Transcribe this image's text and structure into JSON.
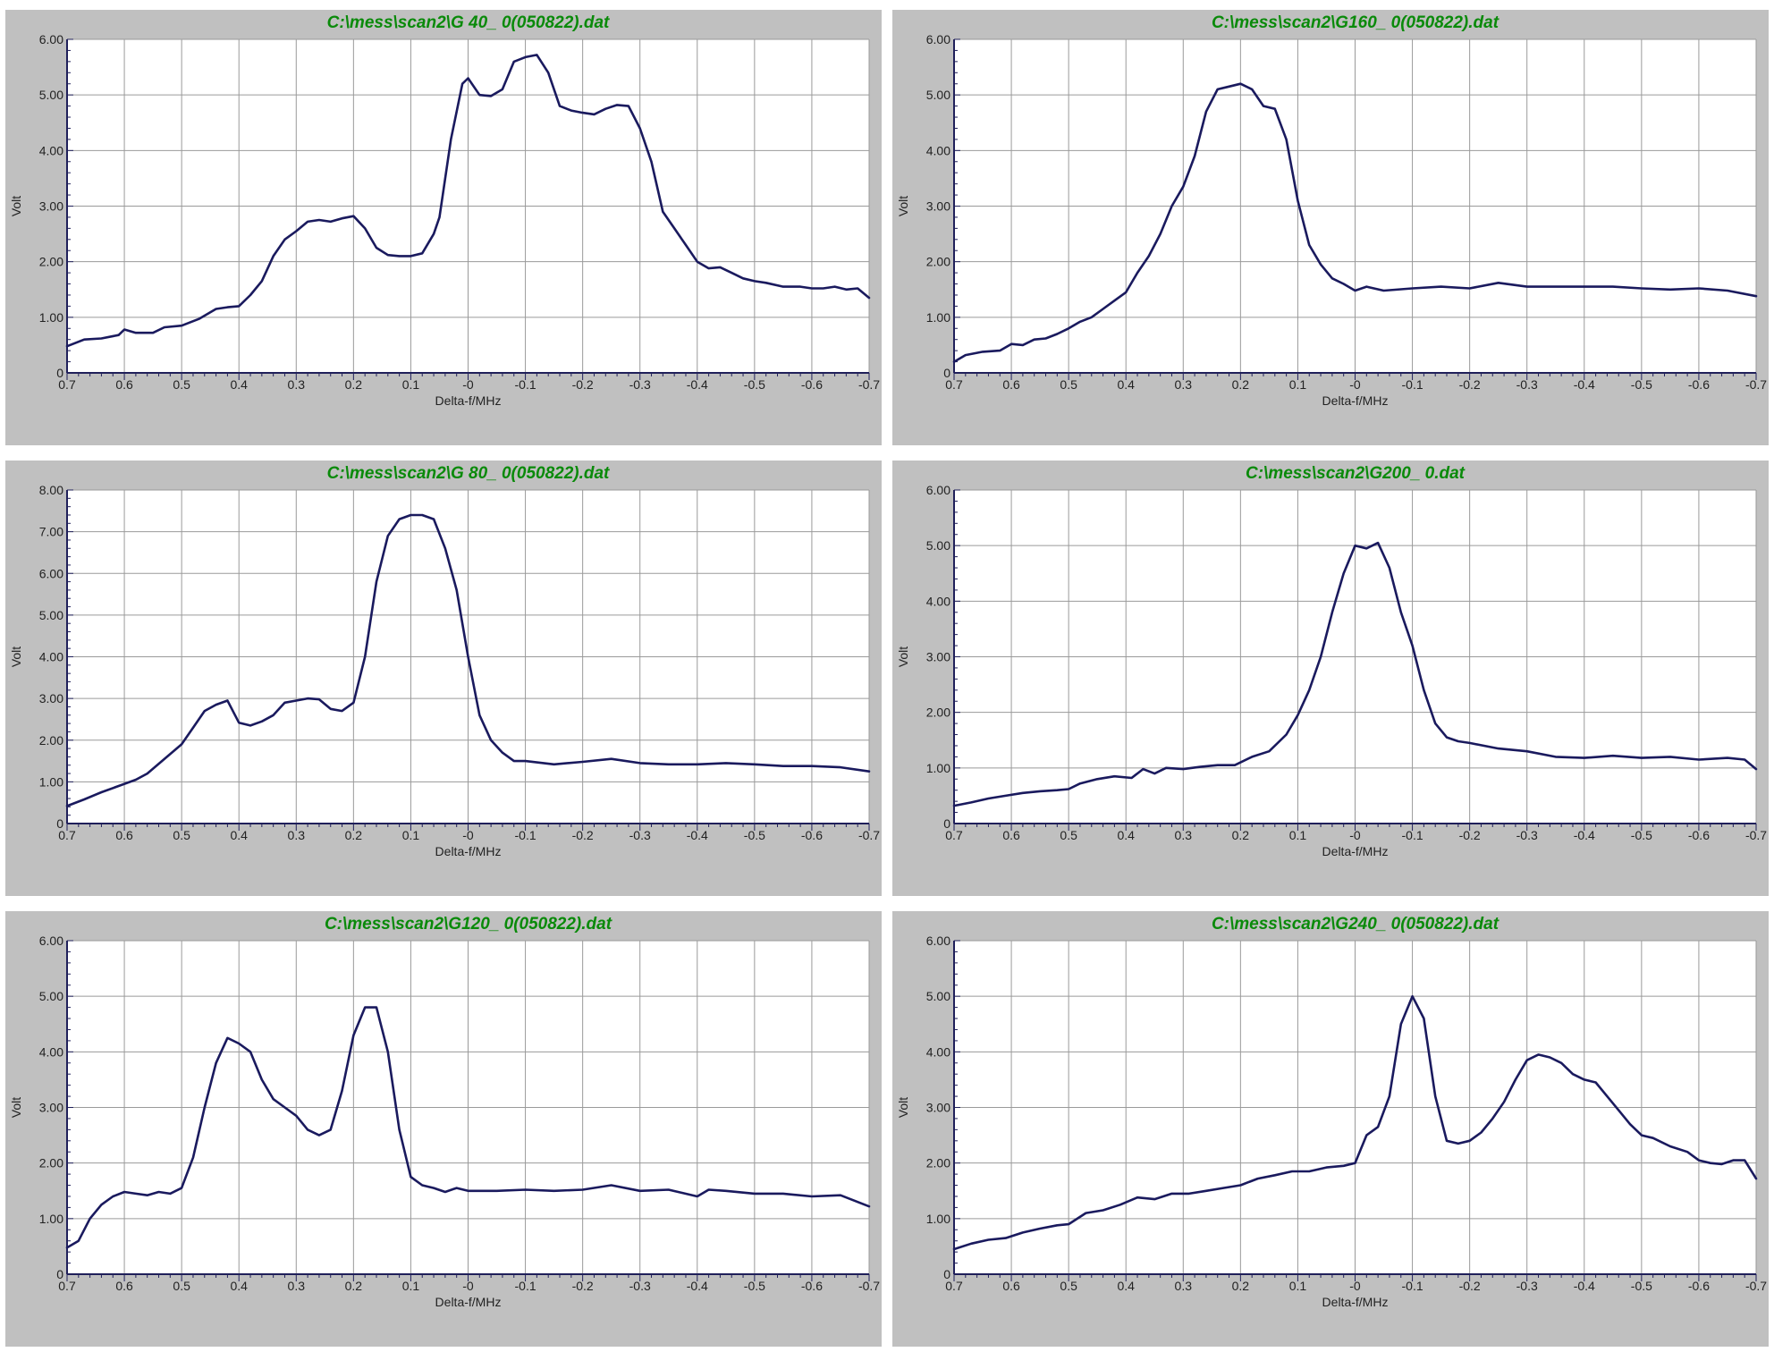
{
  "colors": {
    "panel_background": "#c0c0c0",
    "plot_background": "#ffffff",
    "grid": "#9a9a9a",
    "axis": "#20205a",
    "line": "#1a1a5e",
    "title": "#0a8a0a"
  },
  "chart_data": [
    {
      "type": "line",
      "title": "C:\\mess\\scan2\\G 40_  0(050822).dat",
      "xlabel": "Delta-f/MHz",
      "ylabel": "Volt",
      "xlim": [
        0.7,
        -0.7
      ],
      "ylim": [
        0,
        6
      ],
      "xticks": [
        "0.7",
        "0.6",
        "0.5",
        "0.4",
        "0.3",
        "0.2",
        "0.1",
        "-0",
        "-0.1",
        "-0.2",
        "-0.3",
        "-0.4",
        "-0.5",
        "-0.6",
        "-0.7"
      ],
      "yticks": [
        "0",
        "1.00",
        "2.00",
        "3.00",
        "4.00",
        "5.00",
        "6.00"
      ],
      "grid": true,
      "series": [
        {
          "x": [
            0.7,
            0.67,
            0.64,
            0.61,
            0.6,
            0.58,
            0.55,
            0.53,
            0.5,
            0.47,
            0.44,
            0.42,
            0.4,
            0.38,
            0.36,
            0.34,
            0.32,
            0.3,
            0.28,
            0.26,
            0.24,
            0.22,
            0.2,
            0.18,
            0.16,
            0.14,
            0.12,
            0.1,
            0.08,
            0.06,
            0.05,
            0.03,
            0.01,
            0.0,
            -0.02,
            -0.04,
            -0.06,
            -0.08,
            -0.1,
            -0.12,
            -0.14,
            -0.16,
            -0.18,
            -0.2,
            -0.22,
            -0.24,
            -0.26,
            -0.28,
            -0.3,
            -0.32,
            -0.34,
            -0.36,
            -0.38,
            -0.4,
            -0.42,
            -0.44,
            -0.46,
            -0.48,
            -0.5,
            -0.52,
            -0.55,
            -0.58,
            -0.6,
            -0.62,
            -0.64,
            -0.66,
            -0.68,
            -0.7
          ],
          "y": [
            0.48,
            0.6,
            0.62,
            0.68,
            0.78,
            0.72,
            0.72,
            0.82,
            0.85,
            0.97,
            1.15,
            1.18,
            1.2,
            1.4,
            1.65,
            2.1,
            2.4,
            2.55,
            2.72,
            2.75,
            2.72,
            2.78,
            2.82,
            2.6,
            2.25,
            2.12,
            2.1,
            2.1,
            2.15,
            2.5,
            2.8,
            4.2,
            5.2,
            5.3,
            5.0,
            4.98,
            5.1,
            5.6,
            5.68,
            5.72,
            5.4,
            4.8,
            4.72,
            4.68,
            4.65,
            4.75,
            4.82,
            4.8,
            4.4,
            3.8,
            2.9,
            2.6,
            2.3,
            2.0,
            1.88,
            1.9,
            1.8,
            1.7,
            1.65,
            1.62,
            1.55,
            1.55,
            1.52,
            1.52,
            1.55,
            1.5,
            1.52,
            1.35
          ]
        }
      ]
    },
    {
      "type": "line",
      "title": "C:\\mess\\scan2\\G160_  0(050822).dat",
      "xlabel": "Delta-f/MHz",
      "ylabel": "Volt",
      "xlim": [
        0.7,
        -0.7
      ],
      "ylim": [
        0,
        6
      ],
      "xticks": [
        "0.7",
        "0.6",
        "0.5",
        "0.4",
        "0.3",
        "0.2",
        "0.1",
        "-0",
        "-0.1",
        "-0.2",
        "-0.3",
        "-0.4",
        "-0.5",
        "-0.6",
        "-0.7"
      ],
      "yticks": [
        "0",
        "1.00",
        "2.00",
        "3.00",
        "4.00",
        "5.00",
        "6.00"
      ],
      "grid": true,
      "series": [
        {
          "x": [
            0.7,
            0.68,
            0.65,
            0.62,
            0.6,
            0.58,
            0.56,
            0.54,
            0.52,
            0.5,
            0.48,
            0.46,
            0.44,
            0.42,
            0.4,
            0.38,
            0.36,
            0.34,
            0.32,
            0.3,
            0.28,
            0.26,
            0.24,
            0.22,
            0.2,
            0.18,
            0.16,
            0.14,
            0.12,
            0.1,
            0.08,
            0.06,
            0.04,
            0.02,
            0.0,
            -0.02,
            -0.05,
            -0.1,
            -0.15,
            -0.2,
            -0.25,
            -0.3,
            -0.35,
            -0.4,
            -0.45,
            -0.5,
            -0.55,
            -0.6,
            -0.65,
            -0.7
          ],
          "y": [
            0.2,
            0.32,
            0.38,
            0.4,
            0.52,
            0.5,
            0.6,
            0.62,
            0.7,
            0.8,
            0.92,
            1.0,
            1.15,
            1.3,
            1.45,
            1.8,
            2.1,
            2.5,
            3.0,
            3.35,
            3.9,
            4.7,
            5.1,
            5.15,
            5.2,
            5.1,
            4.8,
            4.75,
            4.2,
            3.1,
            2.3,
            1.95,
            1.7,
            1.6,
            1.48,
            1.55,
            1.48,
            1.52,
            1.55,
            1.52,
            1.62,
            1.55,
            1.55,
            1.55,
            1.55,
            1.52,
            1.5,
            1.52,
            1.48,
            1.38
          ]
        }
      ]
    },
    {
      "type": "line",
      "title": "C:\\mess\\scan2\\G 80_  0(050822).dat",
      "xlabel": "Delta-f/MHz",
      "ylabel": "Volt",
      "xlim": [
        0.7,
        -0.7
      ],
      "ylim": [
        0,
        8
      ],
      "xticks": [
        "0.7",
        "0.6",
        "0.5",
        "0.4",
        "0.3",
        "0.2",
        "0.1",
        "-0",
        "-0.1",
        "-0.2",
        "-0.3",
        "-0.4",
        "-0.5",
        "-0.6",
        "-0.7"
      ],
      "yticks": [
        "0",
        "1.00",
        "2.00",
        "3.00",
        "4.00",
        "5.00",
        "6.00",
        "7.00",
        "8.00"
      ],
      "grid": true,
      "series": [
        {
          "x": [
            0.7,
            0.67,
            0.64,
            0.61,
            0.58,
            0.56,
            0.53,
            0.5,
            0.48,
            0.46,
            0.44,
            0.42,
            0.4,
            0.38,
            0.36,
            0.34,
            0.32,
            0.3,
            0.28,
            0.26,
            0.24,
            0.22,
            0.2,
            0.18,
            0.16,
            0.14,
            0.12,
            0.1,
            0.08,
            0.06,
            0.04,
            0.02,
            0.0,
            -0.02,
            -0.04,
            -0.06,
            -0.08,
            -0.1,
            -0.15,
            -0.2,
            -0.25,
            -0.3,
            -0.35,
            -0.4,
            -0.45,
            -0.5,
            -0.55,
            -0.6,
            -0.65,
            -0.7
          ],
          "y": [
            0.42,
            0.58,
            0.75,
            0.9,
            1.05,
            1.2,
            1.55,
            1.9,
            2.3,
            2.7,
            2.85,
            2.95,
            2.42,
            2.35,
            2.45,
            2.6,
            2.9,
            2.95,
            3.0,
            2.98,
            2.75,
            2.7,
            2.9,
            4.0,
            5.8,
            6.9,
            7.3,
            7.4,
            7.4,
            7.3,
            6.6,
            5.6,
            4.0,
            2.6,
            2.0,
            1.7,
            1.5,
            1.5,
            1.42,
            1.48,
            1.55,
            1.45,
            1.42,
            1.42,
            1.45,
            1.42,
            1.38,
            1.38,
            1.35,
            1.25
          ]
        }
      ]
    },
    {
      "type": "line",
      "title": "C:\\mess\\scan2\\G200_  0.dat",
      "xlabel": "Delta-f/MHz",
      "ylabel": "Volt",
      "xlim": [
        0.7,
        -0.7
      ],
      "ylim": [
        0,
        6
      ],
      "xticks": [
        "0.7",
        "0.6",
        "0.5",
        "0.4",
        "0.3",
        "0.2",
        "0.1",
        "-0",
        "-0.1",
        "-0.2",
        "-0.3",
        "-0.4",
        "-0.5",
        "-0.6",
        "-0.7"
      ],
      "yticks": [
        "0",
        "1.00",
        "2.00",
        "3.00",
        "4.00",
        "5.00",
        "6.00"
      ],
      "grid": true,
      "series": [
        {
          "x": [
            0.7,
            0.67,
            0.64,
            0.61,
            0.58,
            0.55,
            0.52,
            0.5,
            0.48,
            0.45,
            0.42,
            0.39,
            0.37,
            0.35,
            0.33,
            0.3,
            0.27,
            0.24,
            0.21,
            0.18,
            0.15,
            0.12,
            0.1,
            0.08,
            0.06,
            0.04,
            0.02,
            0.0,
            -0.02,
            -0.04,
            -0.06,
            -0.08,
            -0.1,
            -0.12,
            -0.14,
            -0.16,
            -0.18,
            -0.2,
            -0.25,
            -0.3,
            -0.35,
            -0.4,
            -0.45,
            -0.5,
            -0.55,
            -0.6,
            -0.65,
            -0.68,
            -0.7
          ],
          "y": [
            0.32,
            0.38,
            0.45,
            0.5,
            0.55,
            0.58,
            0.6,
            0.62,
            0.72,
            0.8,
            0.85,
            0.82,
            0.98,
            0.9,
            1.0,
            0.98,
            1.02,
            1.05,
            1.05,
            1.2,
            1.3,
            1.6,
            1.95,
            2.4,
            3.0,
            3.8,
            4.5,
            5.0,
            4.95,
            5.05,
            4.6,
            3.8,
            3.2,
            2.4,
            1.8,
            1.55,
            1.48,
            1.45,
            1.35,
            1.3,
            1.2,
            1.18,
            1.22,
            1.18,
            1.2,
            1.15,
            1.18,
            1.15,
            0.98
          ]
        }
      ]
    },
    {
      "type": "line",
      "title": "C:\\mess\\scan2\\G120_  0(050822).dat",
      "xlabel": "Delta-f/MHz",
      "ylabel": "Volt",
      "xlim": [
        0.7,
        -0.7
      ],
      "ylim": [
        0,
        6
      ],
      "xticks": [
        "0.7",
        "0.6",
        "0.5",
        "0.4",
        "0.3",
        "0.2",
        "0.1",
        "-0",
        "-0.1",
        "-0.2",
        "-0.3",
        "-0.4",
        "-0.5",
        "-0.6",
        "-0.7"
      ],
      "yticks": [
        "0",
        "1.00",
        "2.00",
        "3.00",
        "4.00",
        "5.00",
        "6.00"
      ],
      "grid": true,
      "series": [
        {
          "x": [
            0.7,
            0.68,
            0.66,
            0.64,
            0.62,
            0.6,
            0.58,
            0.56,
            0.54,
            0.52,
            0.5,
            0.48,
            0.46,
            0.44,
            0.42,
            0.4,
            0.38,
            0.36,
            0.34,
            0.32,
            0.3,
            0.28,
            0.26,
            0.24,
            0.22,
            0.2,
            0.18,
            0.16,
            0.14,
            0.12,
            0.1,
            0.08,
            0.06,
            0.04,
            0.02,
            0.0,
            -0.05,
            -0.1,
            -0.15,
            -0.2,
            -0.25,
            -0.3,
            -0.35,
            -0.4,
            -0.42,
            -0.45,
            -0.5,
            -0.55,
            -0.6,
            -0.65,
            -0.7
          ],
          "y": [
            0.48,
            0.6,
            1.0,
            1.25,
            1.4,
            1.48,
            1.45,
            1.42,
            1.48,
            1.45,
            1.55,
            2.1,
            3.0,
            3.8,
            4.25,
            4.15,
            4.0,
            3.5,
            3.15,
            3.0,
            2.85,
            2.6,
            2.5,
            2.6,
            3.3,
            4.3,
            4.8,
            4.8,
            4.0,
            2.6,
            1.75,
            1.6,
            1.55,
            1.48,
            1.55,
            1.5,
            1.5,
            1.52,
            1.5,
            1.52,
            1.6,
            1.5,
            1.52,
            1.4,
            1.52,
            1.5,
            1.45,
            1.45,
            1.4,
            1.42,
            1.22
          ]
        }
      ]
    },
    {
      "type": "line",
      "title": "C:\\mess\\scan2\\G240_  0(050822).dat",
      "xlabel": "Delta-f/MHz",
      "ylabel": "Volt",
      "xlim": [
        0.7,
        -0.7
      ],
      "ylim": [
        0,
        6
      ],
      "xticks": [
        "0.7",
        "0.6",
        "0.5",
        "0.4",
        "0.3",
        "0.2",
        "0.1",
        "-0",
        "-0.1",
        "-0.2",
        "-0.3",
        "-0.4",
        "-0.5",
        "-0.6",
        "-0.7"
      ],
      "yticks": [
        "0",
        "1.00",
        "2.00",
        "3.00",
        "4.00",
        "5.00",
        "6.00"
      ],
      "grid": true,
      "series": [
        {
          "x": [
            0.7,
            0.67,
            0.64,
            0.61,
            0.58,
            0.55,
            0.52,
            0.5,
            0.47,
            0.44,
            0.41,
            0.38,
            0.35,
            0.32,
            0.29,
            0.26,
            0.23,
            0.2,
            0.17,
            0.14,
            0.11,
            0.08,
            0.05,
            0.02,
            0.0,
            -0.02,
            -0.04,
            -0.06,
            -0.08,
            -0.1,
            -0.12,
            -0.14,
            -0.16,
            -0.18,
            -0.2,
            -0.22,
            -0.24,
            -0.26,
            -0.28,
            -0.3,
            -0.32,
            -0.34,
            -0.36,
            -0.38,
            -0.4,
            -0.42,
            -0.44,
            -0.46,
            -0.48,
            -0.5,
            -0.52,
            -0.55,
            -0.58,
            -0.6,
            -0.62,
            -0.64,
            -0.66,
            -0.68,
            -0.7
          ],
          "y": [
            0.45,
            0.55,
            0.62,
            0.65,
            0.75,
            0.82,
            0.88,
            0.9,
            1.1,
            1.15,
            1.25,
            1.38,
            1.35,
            1.45,
            1.45,
            1.5,
            1.55,
            1.6,
            1.72,
            1.78,
            1.85,
            1.85,
            1.92,
            1.95,
            2.0,
            2.5,
            2.65,
            3.2,
            4.5,
            5.0,
            4.6,
            3.2,
            2.4,
            2.35,
            2.4,
            2.55,
            2.8,
            3.1,
            3.5,
            3.85,
            3.95,
            3.9,
            3.8,
            3.6,
            3.5,
            3.45,
            3.2,
            2.95,
            2.7,
            2.5,
            2.45,
            2.3,
            2.2,
            2.05,
            2.0,
            1.98,
            2.05,
            2.05,
            1.72
          ]
        }
      ]
    }
  ]
}
